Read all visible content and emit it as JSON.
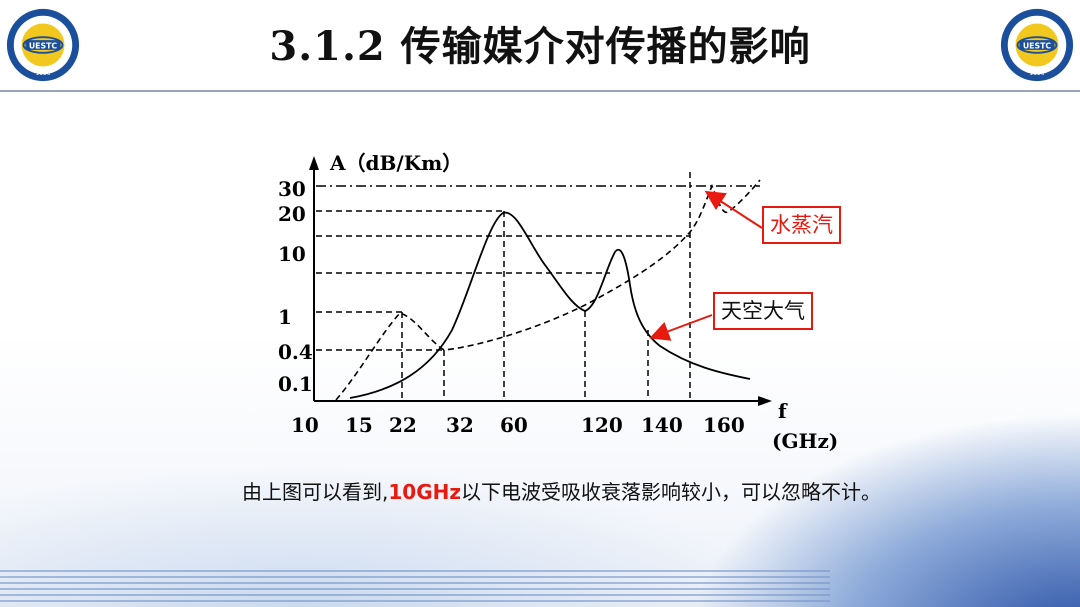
{
  "header": {
    "title": "3.1.2  传输媒介对传播的影响",
    "logo_left": {
      "text": "UESTC",
      "year": "1956"
    },
    "logo_right": {
      "text": "UESTC",
      "year": "1956"
    }
  },
  "chart_data": {
    "type": "line",
    "title": "",
    "ylabel": "A（dB/Km）",
    "xlabel_unit_1": "f",
    "xlabel_unit_2": "(GHz)",
    "x_ticks": [
      "10",
      "15",
      "22",
      "32",
      "60",
      "120",
      "140",
      "160"
    ],
    "y_ticks": [
      "30",
      "20",
      "10",
      "1",
      "0.4",
      "0.1"
    ],
    "series": [
      {
        "name": "水蒸汽",
        "style": "dashed",
        "x": [
          15,
          22,
          32,
          60,
          120,
          140,
          160
        ],
        "y": [
          0.1,
          1,
          0.4,
          0.6,
          1,
          3,
          30
        ]
      },
      {
        "name": "天空大气",
        "style": "solid",
        "x": [
          15,
          22,
          32,
          60,
          120,
          140,
          160
        ],
        "y": [
          0.1,
          0.2,
          0.4,
          20,
          1,
          12,
          0.1
        ]
      }
    ],
    "annotations": [
      "水蒸汽",
      "天空大气"
    ],
    "colors": {
      "curve": "#000000",
      "annotation_box": "#e8190f",
      "arrow": "#e8190f"
    }
  },
  "caption": {
    "part1": "由上图可以看到,",
    "highlight": "10GHz",
    "part2": "以下电波受吸收衰落影响较小，可以忽略不计。"
  }
}
